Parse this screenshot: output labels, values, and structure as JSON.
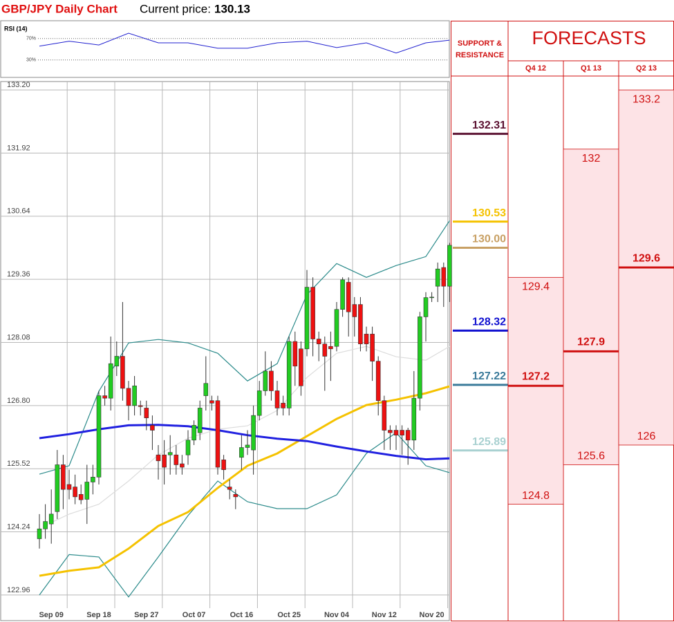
{
  "header": {
    "title": "GBP/JPY Daily Chart",
    "price_label": "Current price:",
    "price": 130.13
  },
  "chart_data": [
    {
      "type": "candlestick",
      "categories": [
        null,
        null,
        "Sep 09",
        null,
        null,
        null,
        null,
        null,
        null,
        null,
        "Sep 18",
        null,
        null,
        null,
        null,
        null,
        null,
        null,
        "Sep 27",
        null,
        null,
        null,
        null,
        null,
        null,
        null,
        "Oct 07",
        null,
        null,
        null,
        null,
        null,
        null,
        null,
        "Oct 16",
        null,
        null,
        null,
        null,
        null,
        null,
        null,
        "Oct 25",
        null,
        null,
        null,
        null,
        null,
        null,
        null,
        "Nov 04",
        null,
        null,
        null,
        null,
        null,
        null,
        null,
        "Nov 12",
        null,
        null,
        null,
        null,
        null,
        null,
        null,
        "Nov 20",
        null,
        null,
        null
      ],
      "open": [
        124.1,
        124.3,
        124.4,
        124.65,
        125.6,
        125.2,
        125.15,
        125.0,
        124.9,
        125.25,
        125.35,
        127.0,
        126.95,
        127.6,
        127.8,
        127.15,
        126.8,
        126.8,
        126.75,
        126.4,
        125.8,
        125.8,
        125.8,
        125.8,
        125.62,
        125.8,
        126.1,
        126.25,
        127.0,
        126.9,
        126.9,
        125.7,
        125.15,
        125.0,
        125.75,
        125.95,
        125.9,
        126.6,
        127.1,
        127.5,
        127.1,
        126.85,
        126.75,
        128.1,
        127.95,
        127.95,
        129.2,
        128.15,
        128.05,
        128.0,
        128.0,
        128.75,
        129.3,
        128.85,
        128.85,
        128.25,
        128.25,
        127.7,
        126.9,
        126.3,
        126.3,
        126.3,
        126.3,
        126.1,
        126.95,
        128.6,
        128.99,
        129.22,
        129.6,
        129.22
      ],
      "high": [
        124.6,
        124.8,
        125.1,
        125.9,
        125.8,
        125.5,
        125.4,
        125.2,
        125.6,
        125.6,
        127.1,
        127.2,
        128.2,
        128.1,
        128.9,
        127.3,
        127.4,
        126.9,
        126.9,
        126.6,
        126.0,
        126.1,
        126.2,
        126.0,
        125.8,
        126.3,
        126.5,
        126.9,
        127.8,
        127.0,
        127.0,
        125.8,
        125.3,
        125.1,
        126.2,
        126.3,
        126.8,
        127.3,
        127.9,
        127.7,
        127.3,
        127.0,
        128.2,
        128.3,
        128.1,
        129.55,
        129.4,
        128.3,
        128.2,
        128.3,
        128.9,
        129.4,
        129.4,
        129.0,
        129.0,
        128.4,
        128.4,
        127.8,
        127.0,
        126.4,
        126.4,
        126.4,
        126.35,
        127.5,
        128.7,
        129.1,
        129.1,
        129.7,
        129.7,
        130.1
      ],
      "low": [
        123.9,
        124.1,
        124.0,
        124.5,
        124.7,
        124.9,
        124.8,
        124.8,
        124.4,
        125.0,
        125.2,
        126.8,
        126.7,
        127.4,
        126.9,
        126.5,
        126.6,
        126.6,
        126.3,
        125.9,
        125.3,
        125.2,
        125.4,
        125.4,
        125.4,
        125.6,
        126.0,
        126.1,
        126.7,
        126.7,
        125.4,
        125.3,
        124.9,
        124.7,
        125.5,
        125.8,
        125.4,
        126.5,
        127.0,
        126.9,
        126.6,
        126.6,
        126.6,
        127.2,
        127.0,
        127.8,
        127.8,
        127.7,
        127.1,
        127.3,
        127.9,
        128.6,
        128.2,
        128.2,
        127.9,
        127.9,
        127.3,
        126.6,
        125.9,
        125.9,
        125.9,
        125.8,
        125.6,
        125.9,
        126.7,
        128.1,
        128.9,
        128.9,
        128.8,
        128.9
      ],
      "close": [
        124.3,
        124.45,
        124.6,
        125.6,
        125.1,
        125.1,
        124.95,
        124.89,
        125.25,
        125.35,
        127.0,
        126.95,
        127.65,
        127.8,
        127.15,
        126.8,
        127.2,
        126.78,
        126.55,
        126.3,
        125.68,
        125.55,
        125.85,
        125.6,
        125.55,
        126.1,
        126.4,
        126.75,
        127.25,
        126.85,
        125.55,
        125.5,
        125.1,
        124.95,
        125.95,
        126.0,
        126.6,
        127.1,
        127.5,
        127.1,
        126.75,
        126.75,
        128.1,
        127.6,
        127.2,
        129.2,
        128.15,
        128.05,
        127.8,
        127.95,
        128.75,
        129.35,
        128.7,
        128.6,
        128.05,
        128.05,
        127.7,
        126.9,
        126.3,
        126.25,
        126.2,
        126.2,
        126.1,
        126.95,
        128.6,
        128.99,
        129.0,
        129.57,
        129.22,
        130.05
      ],
      "up_color": "#22cc22",
      "down_color": "#ee1111",
      "overlays": [
        {
          "color": "#dcdcdc",
          "width": 1.2,
          "x": [
            2,
            5,
            10,
            15,
            20,
            25,
            30,
            35,
            40,
            45,
            50,
            55,
            60,
            65,
            69
          ],
          "values": [
            124.43,
            124.6,
            124.8,
            125.27,
            125.8,
            126.14,
            126.32,
            126.39,
            126.7,
            127.37,
            127.86,
            128.0,
            127.79,
            127.72,
            128.0
          ]
        },
        {
          "color": "#2a8a8a",
          "width": 1.2,
          "x": [
            0,
            5,
            10,
            15,
            20,
            25,
            30,
            35,
            40,
            45,
            50,
            55,
            60,
            65,
            69
          ],
          "values": [
            125.41,
            125.58,
            127.09,
            128.07,
            128.14,
            128.07,
            127.86,
            127.3,
            127.65,
            129.05,
            129.68,
            129.4,
            129.64,
            129.82,
            130.55
          ]
        },
        {
          "color": "#2a8a8a",
          "width": 1.2,
          "x": [
            0,
            5,
            10,
            15,
            20,
            25,
            30,
            35,
            40,
            45,
            50,
            55,
            60,
            65,
            69
          ],
          "values": [
            122.96,
            123.78,
            123.73,
            122.92,
            123.73,
            124.57,
            125.27,
            124.85,
            124.71,
            124.71,
            124.99,
            125.83,
            126.25,
            125.58,
            125.44
          ]
        },
        {
          "color": "#f5c200",
          "width": 3,
          "x": [
            0,
            5,
            10,
            15,
            20,
            25,
            30,
            35,
            40,
            45,
            50,
            55,
            60,
            65,
            69
          ],
          "values": [
            123.35,
            123.45,
            123.52,
            123.9,
            124.36,
            124.64,
            125.13,
            125.58,
            125.83,
            126.18,
            126.53,
            126.81,
            126.92,
            127.05,
            127.19
          ]
        },
        {
          "color": "#2020e0",
          "width": 3,
          "x": [
            0,
            5,
            10,
            15,
            20,
            25,
            30,
            35,
            40,
            45,
            50,
            55,
            60,
            65,
            69
          ],
          "values": [
            126.14,
            126.22,
            126.32,
            126.4,
            126.41,
            126.38,
            126.3,
            126.2,
            126.13,
            126.08,
            125.97,
            125.87,
            125.78,
            125.71,
            125.73
          ]
        }
      ],
      "ylim": [
        122.44,
        133.37
      ],
      "yticks": [
        {
          "value": 133.2,
          "label": "133.20"
        },
        131.92,
        130.64,
        129.36,
        128.08,
        {
          "value": 126.8,
          "label": "126.80"
        },
        125.52,
        124.24,
        122.96
      ],
      "grid": true
    },
    {
      "type": "line",
      "title": "RSI (14)",
      "color": "#2020d0",
      "x": [
        0,
        5,
        10,
        15,
        20,
        25,
        30,
        35,
        40,
        45,
        50,
        55,
        60,
        65,
        69
      ],
      "values": [
        55.8,
        65,
        58,
        80,
        62,
        62,
        52,
        52,
        62,
        65,
        53,
        62,
        43,
        62,
        67
      ],
      "ylim": [
        0,
        100
      ],
      "yticks": [
        {
          "value": 70,
          "label": "70%"
        },
        {
          "value": 30,
          "label": "30%"
        }
      ]
    }
  ],
  "support_resistance": {
    "title": [
      "SUPPORT &",
      "RESISTANCE"
    ],
    "values": [
      132.31,
      130.53,
      130.0,
      128.32,
      127.22,
      125.89
    ],
    "value_labels": [
      "132.31",
      "130.53",
      "130.00",
      "128.32",
      "127.22",
      "125.89"
    ],
    "colors": [
      "#5a1030",
      "#f5c200",
      "#c8a064",
      "#1010d0",
      "#3a7a9a",
      "#a8d0d0"
    ]
  },
  "forecasts": {
    "title": "FORECASTS",
    "color": "#d01010",
    "fill": "#fde3e6",
    "columns": [
      {
        "name": "Q4 12",
        "high": 129.4,
        "mid": 127.2,
        "low": 124.8
      },
      {
        "name": "Q1 13",
        "high": 132,
        "mid": 127.9,
        "low": 125.6
      },
      {
        "name": "Q2 13",
        "high": 133.2,
        "mid": 129.6,
        "low": 126
      }
    ]
  }
}
